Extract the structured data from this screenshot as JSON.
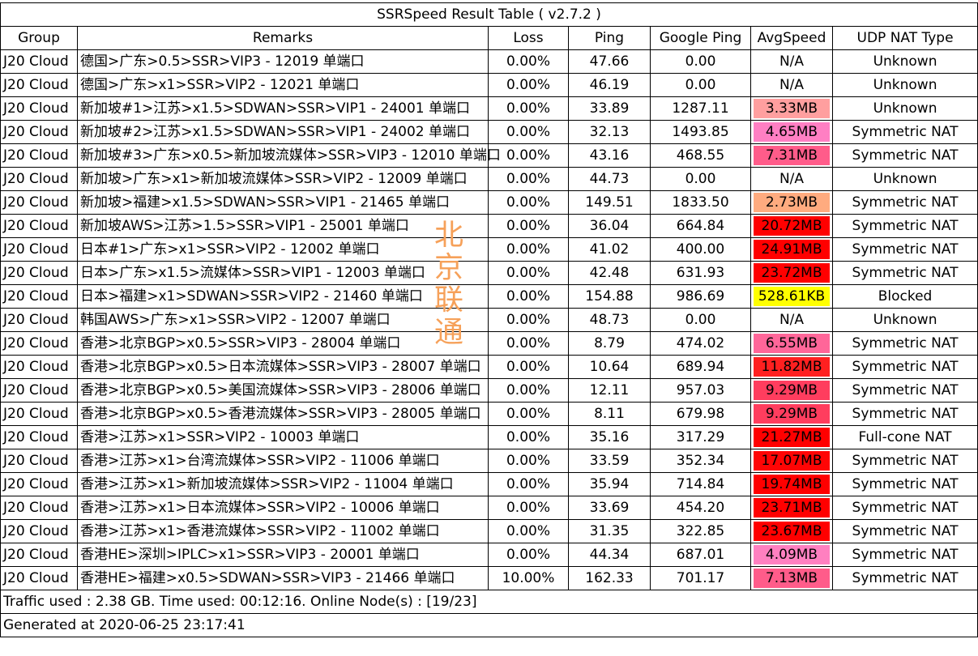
{
  "title": "SSRSpeed Result Table ( v2.7.2 )",
  "headers": [
    "Group",
    "Remarks",
    "Loss",
    "Ping",
    "Google Ping",
    "AvgSpeed",
    "UDP NAT Type"
  ],
  "rows": [
    {
      "group": "J20 Cloud",
      "remarks": "德国>广东>0.5>SSR>VIP3 - 12019 单端口",
      "loss": "0.00%",
      "ping": "47.66",
      "gping": "0.00",
      "speed": "N/A",
      "color": "#ffffff",
      "nat": "Unknown"
    },
    {
      "group": "J20 Cloud",
      "remarks": "德国>广东>x1>SSR>VIP2 - 12021 单端口",
      "loss": "0.00%",
      "ping": "46.19",
      "gping": "0.00",
      "speed": "N/A",
      "color": "#ffffff",
      "nat": "Unknown"
    },
    {
      "group": "J20 Cloud",
      "remarks": "新加坡#1>江苏>x1.5>SDWAN>SSR>VIP1 - 24001 单端口",
      "loss": "0.00%",
      "ping": "33.89",
      "gping": "1287.11",
      "speed": "3.33MB",
      "color": "#ff9f9f",
      "nat": "Unknown"
    },
    {
      "group": "J20 Cloud",
      "remarks": "新加坡#2>江苏>x1.5>SDWAN>SSR>VIP1 - 24002 单端口",
      "loss": "0.00%",
      "ping": "32.13",
      "gping": "1493.85",
      "speed": "4.65MB",
      "color": "#ff7fc3",
      "nat": "Symmetric NAT"
    },
    {
      "group": "J20 Cloud",
      "remarks": "新加坡#3>广东>x0.5>新加坡流媒体>SSR>VIP3 - 12010 单端口",
      "loss": "0.00%",
      "ping": "43.16",
      "gping": "468.55",
      "speed": "7.31MB",
      "color": "#ff5c8a",
      "nat": "Symmetric NAT"
    },
    {
      "group": "J20 Cloud",
      "remarks": "新加坡>广东>x1>新加坡流媒体>SSR>VIP2 - 12009 单端口",
      "loss": "0.00%",
      "ping": "44.73",
      "gping": "0.00",
      "speed": "N/A",
      "color": "#ffffff",
      "nat": "Unknown"
    },
    {
      "group": "J20 Cloud",
      "remarks": "新加坡>福建>x1.5>SDWAN>SSR>VIP1 - 21465 单端口",
      "loss": "0.00%",
      "ping": "149.51",
      "gping": "1833.50",
      "speed": "2.73MB",
      "color": "#ffab7f",
      "nat": "Symmetric NAT"
    },
    {
      "group": "J20 Cloud",
      "remarks": "新加坡AWS>江苏>1.5>SSR>VIP1 - 25001 单端口",
      "loss": "0.00%",
      "ping": "36.04",
      "gping": "664.84",
      "speed": "20.72MB",
      "color": "#ff0000",
      "nat": "Symmetric NAT"
    },
    {
      "group": "J20 Cloud",
      "remarks": "日本#1>广东>x1>SSR>VIP2 - 12002 单端口",
      "loss": "0.00%",
      "ping": "41.02",
      "gping": "400.00",
      "speed": "24.91MB",
      "color": "#ff0000",
      "nat": "Symmetric NAT"
    },
    {
      "group": "J20 Cloud",
      "remarks": "日本>广东>x1.5>流媒体>SSR>VIP1 - 12003 单端口",
      "loss": "0.00%",
      "ping": "42.48",
      "gping": "631.93",
      "speed": "23.72MB",
      "color": "#ff0000",
      "nat": "Symmetric NAT"
    },
    {
      "group": "J20 Cloud",
      "remarks": "日本>福建>x1>SDWAN>SSR>VIP2 - 21460 单端口",
      "loss": "0.00%",
      "ping": "154.88",
      "gping": "986.69",
      "speed": "528.61KB",
      "color": "#ffff00",
      "nat": "Blocked"
    },
    {
      "group": "J20 Cloud",
      "remarks": "韩国AWS>广东>x1>SSR>VIP2 - 12007 单端口",
      "loss": "0.00%",
      "ping": "48.73",
      "gping": "0.00",
      "speed": "N/A",
      "color": "#ffffff",
      "nat": "Unknown"
    },
    {
      "group": "J20 Cloud",
      "remarks": "香港>北京BGP>x0.5>SSR>VIP3 - 28004 单端口",
      "loss": "0.00%",
      "ping": "8.79",
      "gping": "474.02",
      "speed": "6.55MB",
      "color": "#ff6699",
      "nat": "Symmetric NAT"
    },
    {
      "group": "J20 Cloud",
      "remarks": "香港>北京BGP>x0.5>日本流媒体>SSR>VIP3 - 28007 单端口",
      "loss": "0.00%",
      "ping": "10.64",
      "gping": "689.94",
      "speed": "11.82MB",
      "color": "#ff2020",
      "nat": "Symmetric NAT"
    },
    {
      "group": "J20 Cloud",
      "remarks": "香港>北京BGP>x0.5>美国流媒体>SSR>VIP3 - 28006 单端口",
      "loss": "0.00%",
      "ping": "12.11",
      "gping": "957.03",
      "speed": "9.29MB",
      "color": "#ff3d5e",
      "nat": "Symmetric NAT"
    },
    {
      "group": "J20 Cloud",
      "remarks": "香港>北京BGP>x0.5>香港流媒体>SSR>VIP3 - 28005 单端口",
      "loss": "0.00%",
      "ping": "8.11",
      "gping": "679.98",
      "speed": "9.29MB",
      "color": "#ff3d5e",
      "nat": "Symmetric NAT"
    },
    {
      "group": "J20 Cloud",
      "remarks": "香港>江苏>x1>SSR>VIP2 - 10003 单端口",
      "loss": "0.00%",
      "ping": "35.16",
      "gping": "317.29",
      "speed": "21.27MB",
      "color": "#ff0000",
      "nat": "Full-cone NAT"
    },
    {
      "group": "J20 Cloud",
      "remarks": "香港>江苏>x1>台湾流媒体>SSR>VIP2 - 11006 单端口",
      "loss": "0.00%",
      "ping": "33.59",
      "gping": "352.34",
      "speed": "17.07MB",
      "color": "#ff0505",
      "nat": "Symmetric NAT"
    },
    {
      "group": "J20 Cloud",
      "remarks": "香港>江苏>x1>新加坡流媒体>SSR>VIP2 - 11004 单端口",
      "loss": "0.00%",
      "ping": "35.94",
      "gping": "714.84",
      "speed": "19.74MB",
      "color": "#ff0000",
      "nat": "Symmetric NAT"
    },
    {
      "group": "J20 Cloud",
      "remarks": "香港>江苏>x1>日本流媒体>SSR>VIP2 - 10006 单端口",
      "loss": "0.00%",
      "ping": "33.69",
      "gping": "454.20",
      "speed": "23.71MB",
      "color": "#ff0000",
      "nat": "Symmetric NAT"
    },
    {
      "group": "J20 Cloud",
      "remarks": "香港>江苏>x1>香港流媒体>SSR>VIP2 - 11002 单端口",
      "loss": "0.00%",
      "ping": "31.35",
      "gping": "322.85",
      "speed": "23.67MB",
      "color": "#ff0000",
      "nat": "Symmetric NAT"
    },
    {
      "group": "J20 Cloud",
      "remarks": "香港HE>深圳>IPLC>x1>SSR>VIP3 - 20001 单端口",
      "loss": "0.00%",
      "ping": "44.34",
      "gping": "687.01",
      "speed": "4.09MB",
      "color": "#ff80c0",
      "nat": "Symmetric NAT"
    },
    {
      "group": "J20 Cloud",
      "remarks": "香港HE>福建>x0.5>SDWAN>SSR>VIP3 - 21466 单端口",
      "loss": "10.00%",
      "ping": "162.33",
      "gping": "701.17",
      "speed": "7.13MB",
      "color": "#ff5c8a",
      "nat": "Symmetric NAT"
    }
  ],
  "footer": {
    "traffic": "Traffic used : 2.38 GB. Time used: 00:12:16. Online Node(s) : [19/23]",
    "generated": "Generated at 2020-06-25 23:17:41"
  },
  "watermark": [
    "北",
    "京",
    "联",
    "通"
  ],
  "watermark_color": "#f6a15a"
}
